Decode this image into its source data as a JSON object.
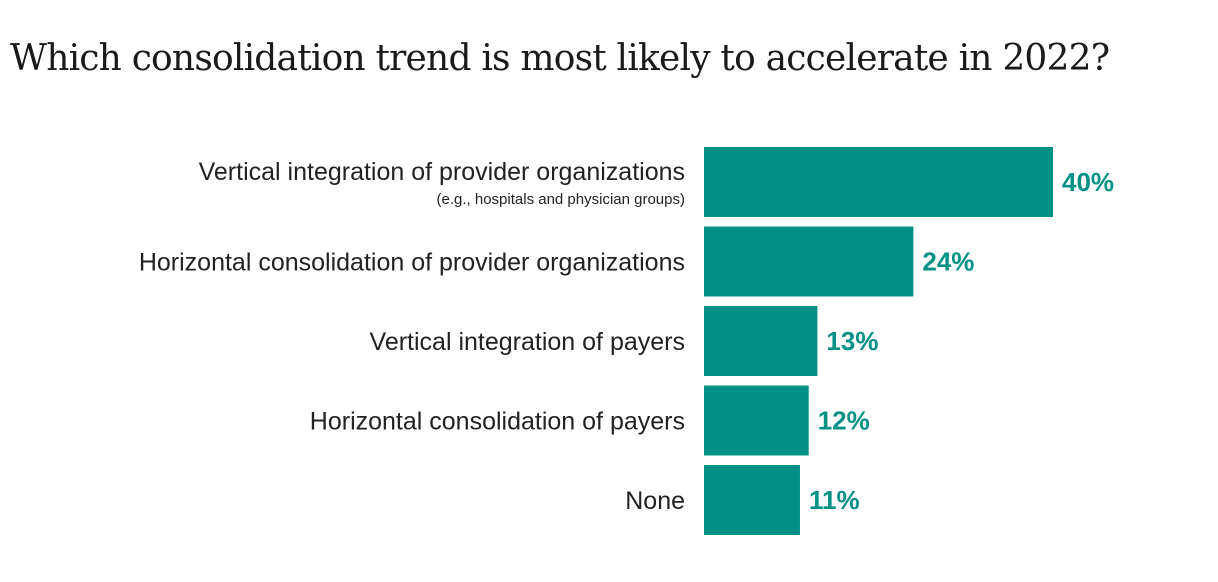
{
  "chart_data": {
    "type": "bar",
    "orientation": "horizontal",
    "title": "Which consolidation trend is most likely to accelerate in 2022?",
    "categories": [
      "Vertical integration of provider organizations",
      "Horizontal consolidation of provider organizations",
      "Vertical integration of payers",
      "Horizontal consolidation of payers",
      "None"
    ],
    "category_notes": [
      "(e.g., hospitals and physician groups)",
      "",
      "",
      "",
      ""
    ],
    "values": [
      40,
      24,
      13,
      12,
      11
    ],
    "value_labels": [
      "40%",
      "24%",
      "13%",
      "12%",
      "11%"
    ],
    "unit": "%",
    "xlim": [
      0,
      40
    ],
    "grid": false,
    "legend": "none",
    "bar_color": "#009186",
    "value_label_color": "#009186"
  }
}
